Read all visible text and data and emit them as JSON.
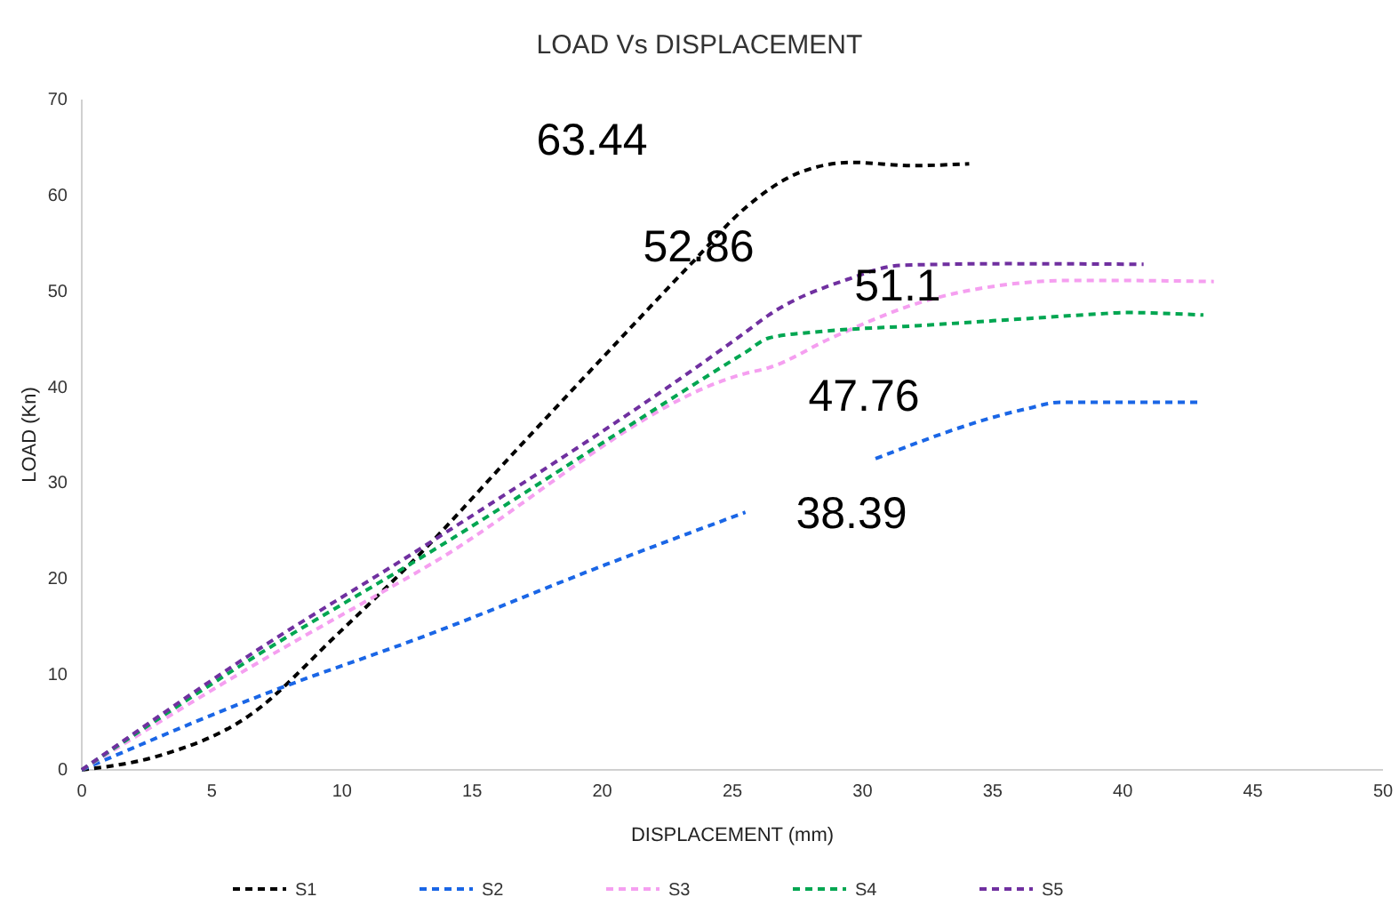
{
  "chart_data": {
    "type": "line",
    "title": "LOAD Vs DISPLACEMENT",
    "xlabel": "DISPLACEMENT (mm)",
    "ylabel": "LOAD (Kn)",
    "xlim": [
      0,
      50
    ],
    "xticks": [
      0,
      5,
      10,
      15,
      20,
      25,
      30,
      35,
      40,
      45,
      50
    ],
    "ylim": [
      0,
      70
    ],
    "yticks": [
      0,
      10,
      20,
      30,
      40,
      50,
      60,
      70
    ],
    "grid": false,
    "legend": "bottom",
    "line_style": "dashed",
    "marker": "none",
    "series": [
      {
        "name": "S1",
        "color": "#000000",
        "x": [
          0,
          3.0,
          6.4,
          9.8,
          13.3,
          16.7,
          20.1,
          23.5,
          25.5,
          27.6,
          29.6,
          31.9,
          34.1
        ],
        "values": [
          0,
          1.5,
          5.6,
          14.1,
          23.4,
          33.4,
          43.3,
          53.1,
          58.7,
          62.4,
          63.44,
          63.1,
          63.3
        ]
      },
      {
        "name": "S2",
        "color": "#1a66e6",
        "x": [
          0,
          7.1,
          13.3,
          20.1,
          25.5,
          28,
          30.5,
          36.3,
          37.6,
          43.0
        ],
        "values": [
          0,
          8.0,
          14.1,
          21.4,
          26.9,
          null,
          32.5,
          37.7,
          38.39,
          38.39
        ]
      },
      {
        "name": "S3",
        "color": "#f59ff0",
        "x": [
          0,
          6.4,
          13.3,
          25.5,
          26.4,
          28.8,
          32.2,
          35.6,
          37.8,
          40.1,
          43.5
        ],
        "values": [
          0,
          10.6,
          21.3,
          41.4,
          42.0,
          45.1,
          48.8,
          50.7,
          51.1,
          51.1,
          51.0
        ]
      },
      {
        "name": "S4",
        "color": "#00a651",
        "x": [
          0,
          6.4,
          13.3,
          25.5,
          26.4,
          28.1,
          32.2,
          35.6,
          39.0,
          40.1,
          43.1
        ],
        "values": [
          0,
          11.4,
          22.6,
          43.6,
          45.1,
          45.7,
          46.4,
          47.0,
          47.6,
          47.76,
          47.5
        ]
      },
      {
        "name": "S5",
        "color": "#7030a0",
        "x": [
          0,
          6.4,
          13.3,
          25.5,
          26.4,
          29.4,
          31.5,
          35.6,
          40.8
        ],
        "values": [
          0,
          11.9,
          23.6,
          45.7,
          47.5,
          51.2,
          52.7,
          52.86,
          52.8
        ]
      }
    ],
    "annotations": [
      "63.44",
      "52.86",
      "51.1",
      "47.76",
      "38.39"
    ]
  }
}
